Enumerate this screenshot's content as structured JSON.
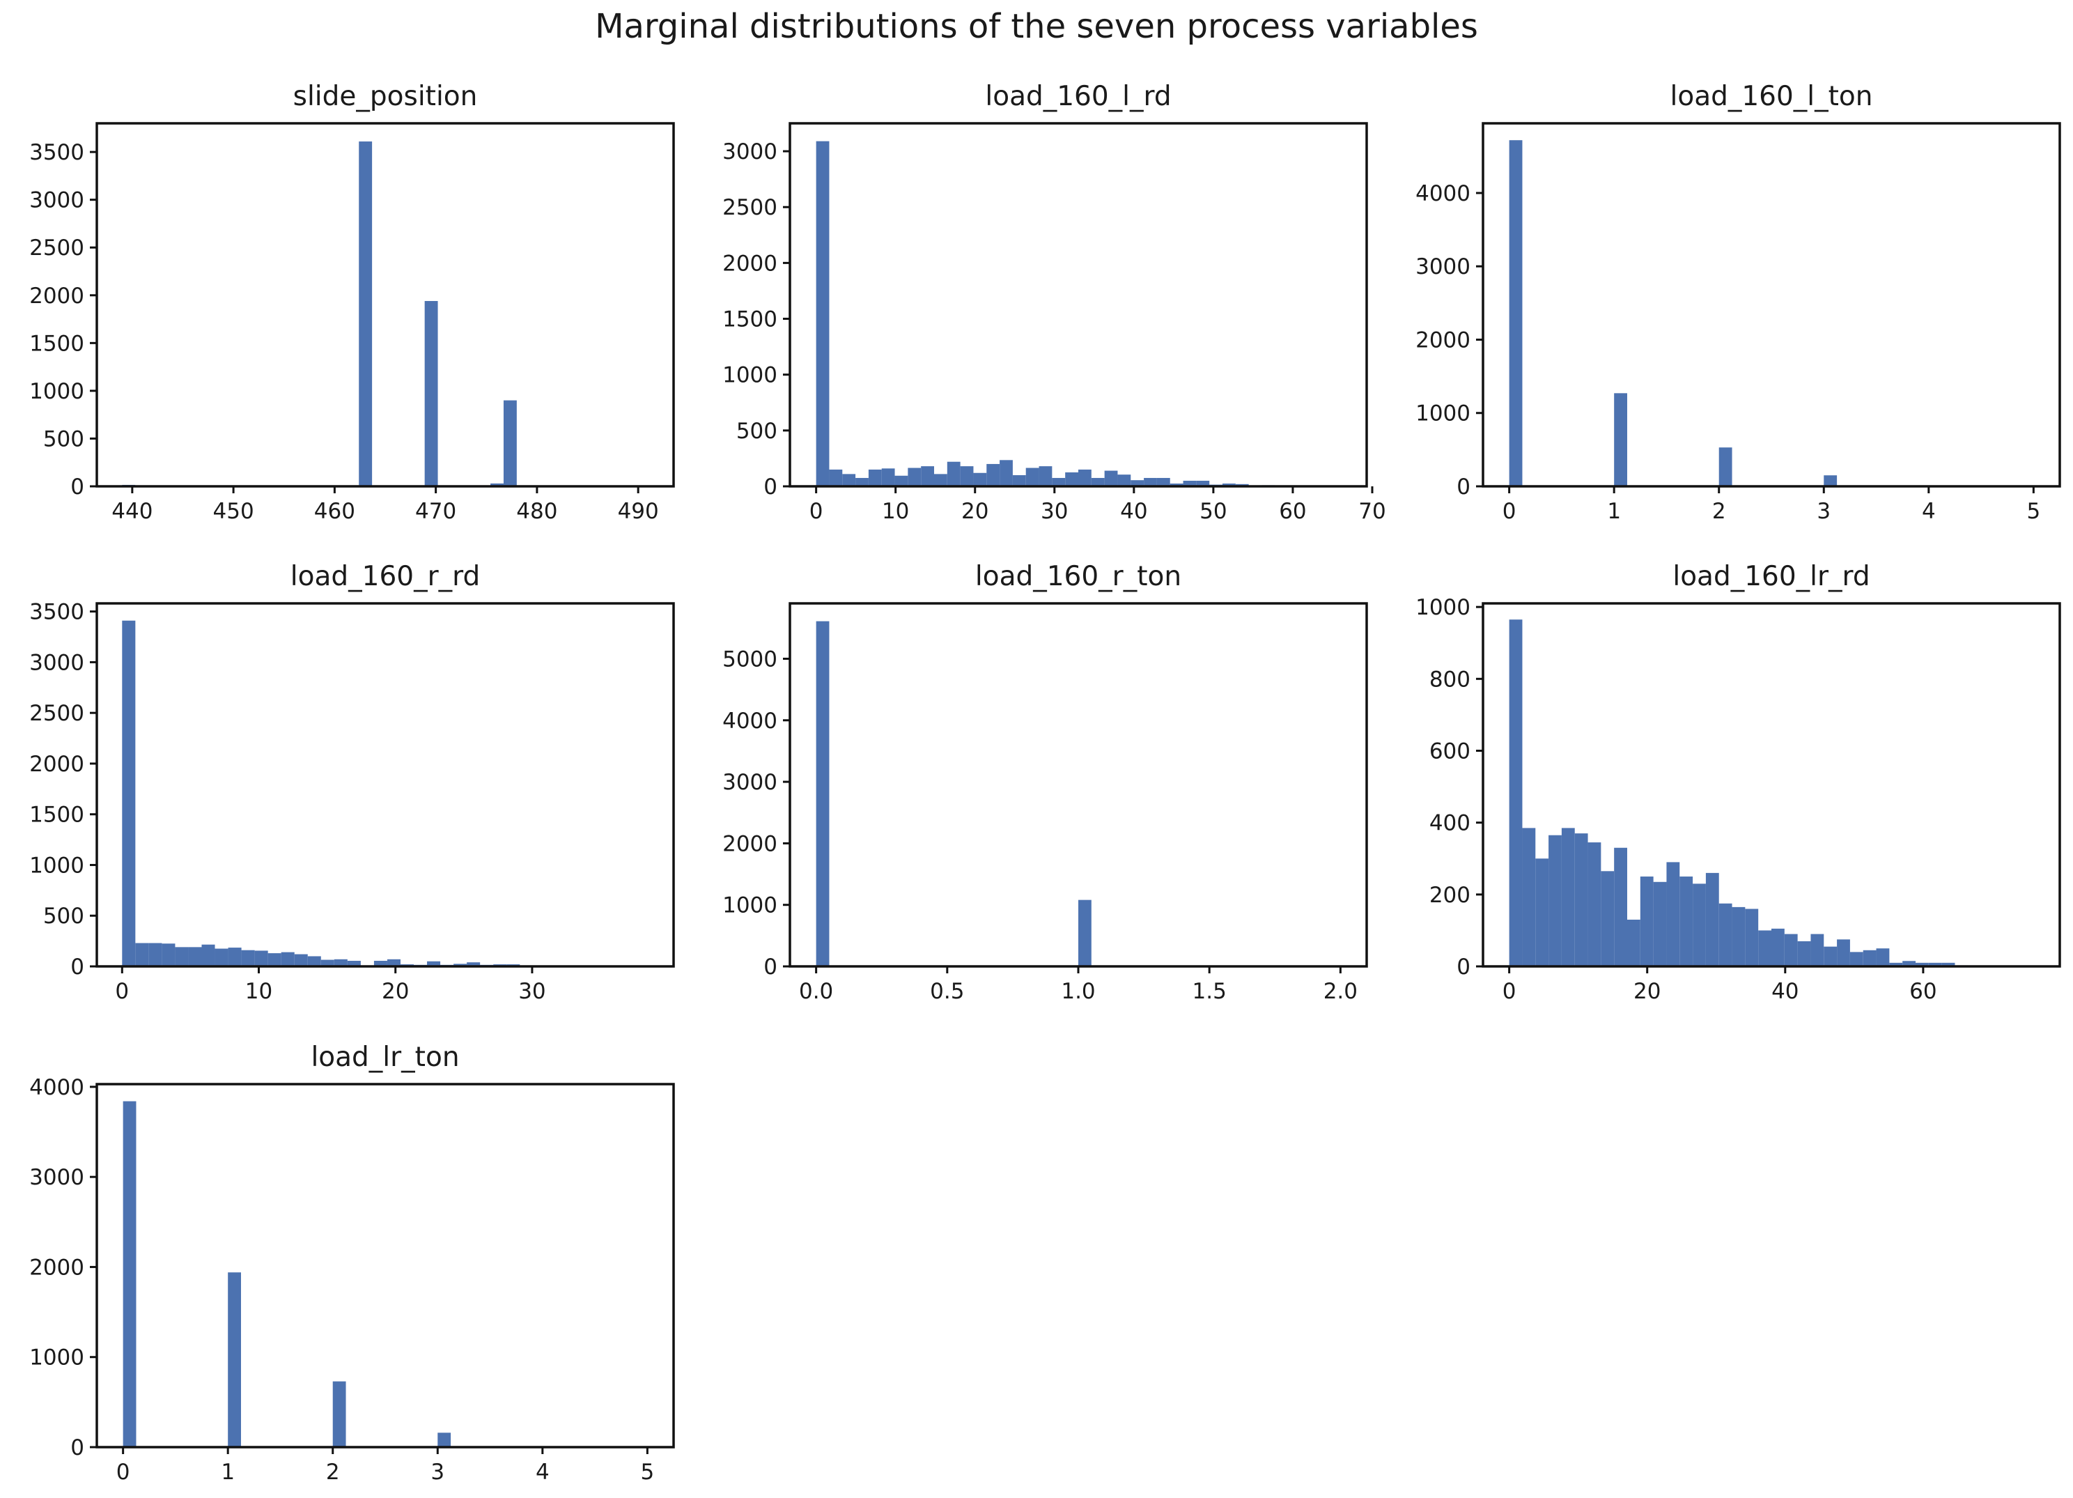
{
  "figure": {
    "title": "Marginal distributions of the seven process variables",
    "bar_color": "#4c72b0"
  },
  "chart_data": [
    {
      "type": "bar",
      "title": "slide_position",
      "xlim": [
        436.5,
        493.5
      ],
      "ylim": [
        0,
        3800
      ],
      "x_ticks": [
        440,
        450,
        460,
        470,
        480,
        490
      ],
      "y_ticks": [
        0,
        500,
        1000,
        1500,
        2000,
        2500,
        3000,
        3500
      ],
      "bins": [
        {
          "x0": 439.0,
          "x1": 440.3,
          "count": 15
        },
        {
          "x0": 444.2,
          "x1": 445.5,
          "count": 3
        },
        {
          "x0": 449.4,
          "x1": 450.7,
          "count": 3
        },
        {
          "x0": 454.6,
          "x1": 455.9,
          "count": 2
        },
        {
          "x0": 458.5,
          "x1": 459.8,
          "count": 2
        },
        {
          "x0": 462.4,
          "x1": 463.7,
          "count": 3610
        },
        {
          "x0": 468.9,
          "x1": 470.2,
          "count": 1940
        },
        {
          "x0": 475.4,
          "x1": 476.7,
          "count": 30
        },
        {
          "x0": 476.7,
          "x1": 478.0,
          "count": 900
        }
      ]
    },
    {
      "type": "bar",
      "title": "load_160_l_rd",
      "xlim": [
        -3.3,
        69.3
      ],
      "ylim": [
        0,
        3250
      ],
      "x_ticks": [
        0,
        10,
        20,
        30,
        40,
        50,
        60,
        70
      ],
      "y_ticks": [
        0,
        500,
        1000,
        1500,
        2000,
        2500,
        3000
      ],
      "bins": [
        {
          "x0": 0.0,
          "x1": 1.65,
          "count": 3090
        },
        {
          "x0": 1.65,
          "x1": 3.3,
          "count": 150
        },
        {
          "x0": 3.3,
          "x1": 4.95,
          "count": 110
        },
        {
          "x0": 4.95,
          "x1": 6.6,
          "count": 75
        },
        {
          "x0": 6.6,
          "x1": 8.25,
          "count": 150
        },
        {
          "x0": 8.25,
          "x1": 9.9,
          "count": 160
        },
        {
          "x0": 9.9,
          "x1": 11.55,
          "count": 95
        },
        {
          "x0": 11.55,
          "x1": 13.2,
          "count": 165
        },
        {
          "x0": 13.2,
          "x1": 14.85,
          "count": 180
        },
        {
          "x0": 14.85,
          "x1": 16.5,
          "count": 110
        },
        {
          "x0": 16.5,
          "x1": 18.15,
          "count": 220
        },
        {
          "x0": 18.15,
          "x1": 19.8,
          "count": 180
        },
        {
          "x0": 19.8,
          "x1": 21.45,
          "count": 120
        },
        {
          "x0": 21.45,
          "x1": 23.1,
          "count": 200
        },
        {
          "x0": 23.1,
          "x1": 24.75,
          "count": 235
        },
        {
          "x0": 24.75,
          "x1": 26.4,
          "count": 100
        },
        {
          "x0": 26.4,
          "x1": 28.05,
          "count": 165
        },
        {
          "x0": 28.05,
          "x1": 29.7,
          "count": 180
        },
        {
          "x0": 29.7,
          "x1": 31.35,
          "count": 75
        },
        {
          "x0": 31.35,
          "x1": 33.0,
          "count": 125
        },
        {
          "x0": 33.0,
          "x1": 34.65,
          "count": 150
        },
        {
          "x0": 34.65,
          "x1": 36.3,
          "count": 75
        },
        {
          "x0": 36.3,
          "x1": 37.95,
          "count": 140
        },
        {
          "x0": 37.95,
          "x1": 39.6,
          "count": 105
        },
        {
          "x0": 39.6,
          "x1": 41.25,
          "count": 55
        },
        {
          "x0": 41.25,
          "x1": 42.9,
          "count": 75
        },
        {
          "x0": 42.9,
          "x1": 44.55,
          "count": 75
        },
        {
          "x0": 44.55,
          "x1": 46.2,
          "count": 25
        },
        {
          "x0": 46.2,
          "x1": 47.85,
          "count": 50
        },
        {
          "x0": 47.85,
          "x1": 49.5,
          "count": 50
        },
        {
          "x0": 49.5,
          "x1": 51.15,
          "count": 15
        },
        {
          "x0": 51.15,
          "x1": 52.8,
          "count": 25
        },
        {
          "x0": 52.8,
          "x1": 54.45,
          "count": 20
        },
        {
          "x0": 54.45,
          "x1": 56.1,
          "count": 8
        },
        {
          "x0": 56.1,
          "x1": 57.75,
          "count": 10
        },
        {
          "x0": 57.75,
          "x1": 59.4,
          "count": 5
        },
        {
          "x0": 59.4,
          "x1": 61.05,
          "count": 8
        },
        {
          "x0": 61.05,
          "x1": 62.7,
          "count": 5
        },
        {
          "x0": 62.7,
          "x1": 64.35,
          "count": 3
        },
        {
          "x0": 64.35,
          "x1": 66.0,
          "count": 3
        }
      ]
    },
    {
      "type": "bar",
      "title": "load_160_l_ton",
      "xlim": [
        -0.25,
        5.25
      ],
      "ylim": [
        0,
        4950
      ],
      "x_ticks": [
        0,
        1,
        2,
        3,
        4,
        5
      ],
      "y_ticks": [
        0,
        1000,
        2000,
        3000,
        4000
      ],
      "bins": [
        {
          "x0": 0.0,
          "x1": 0.125,
          "count": 4720
        },
        {
          "x0": 1.0,
          "x1": 1.125,
          "count": 1270
        },
        {
          "x0": 2.0,
          "x1": 2.125,
          "count": 530
        },
        {
          "x0": 3.0,
          "x1": 3.125,
          "count": 150
        },
        {
          "x0": 4.0,
          "x1": 4.125,
          "count": 10
        },
        {
          "x0": 4.875,
          "x1": 5.0,
          "count": 2
        }
      ]
    },
    {
      "type": "bar",
      "title": "load_160_r_rd",
      "xlim": [
        -1.85,
        40.35
      ],
      "ylim": [
        0,
        3580
      ],
      "x_ticks": [
        0,
        10,
        20,
        30
      ],
      "y_ticks": [
        0,
        500,
        1000,
        1500,
        2000,
        2500,
        3000,
        3500
      ],
      "bins": [
        {
          "x0": 0.0,
          "x1": 0.97,
          "count": 3410
        },
        {
          "x0": 0.97,
          "x1": 1.94,
          "count": 230
        },
        {
          "x0": 1.94,
          "x1": 2.91,
          "count": 230
        },
        {
          "x0": 2.91,
          "x1": 3.88,
          "count": 225
        },
        {
          "x0": 3.88,
          "x1": 4.85,
          "count": 190
        },
        {
          "x0": 4.85,
          "x1": 5.82,
          "count": 190
        },
        {
          "x0": 5.82,
          "x1": 6.79,
          "count": 215
        },
        {
          "x0": 6.79,
          "x1": 7.76,
          "count": 175
        },
        {
          "x0": 7.76,
          "x1": 8.73,
          "count": 185
        },
        {
          "x0": 8.73,
          "x1": 9.7,
          "count": 160
        },
        {
          "x0": 9.7,
          "x1": 10.67,
          "count": 155
        },
        {
          "x0": 10.67,
          "x1": 11.64,
          "count": 130
        },
        {
          "x0": 11.64,
          "x1": 12.61,
          "count": 140
        },
        {
          "x0": 12.61,
          "x1": 13.58,
          "count": 120
        },
        {
          "x0": 13.58,
          "x1": 14.55,
          "count": 100
        },
        {
          "x0": 14.55,
          "x1": 15.52,
          "count": 65
        },
        {
          "x0": 15.52,
          "x1": 16.49,
          "count": 70
        },
        {
          "x0": 16.49,
          "x1": 17.46,
          "count": 55
        },
        {
          "x0": 17.46,
          "x1": 18.43,
          "count": 10
        },
        {
          "x0": 18.43,
          "x1": 19.4,
          "count": 55
        },
        {
          "x0": 19.4,
          "x1": 20.37,
          "count": 70
        },
        {
          "x0": 20.37,
          "x1": 21.34,
          "count": 20
        },
        {
          "x0": 21.34,
          "x1": 22.31,
          "count": 15
        },
        {
          "x0": 22.31,
          "x1": 23.28,
          "count": 50
        },
        {
          "x0": 23.28,
          "x1": 24.25,
          "count": 15
        },
        {
          "x0": 24.25,
          "x1": 25.22,
          "count": 25
        },
        {
          "x0": 25.22,
          "x1": 26.19,
          "count": 40
        },
        {
          "x0": 26.19,
          "x1": 27.16,
          "count": 15
        },
        {
          "x0": 27.16,
          "x1": 28.13,
          "count": 20
        },
        {
          "x0": 28.13,
          "x1": 29.1,
          "count": 20
        },
        {
          "x0": 29.1,
          "x1": 30.07,
          "count": 5
        },
        {
          "x0": 30.07,
          "x1": 31.04,
          "count": 5
        },
        {
          "x0": 31.04,
          "x1": 32.01,
          "count": 3
        },
        {
          "x0": 32.01,
          "x1": 32.98,
          "count": 3
        },
        {
          "x0": 32.98,
          "x1": 33.95,
          "count": 2
        },
        {
          "x0": 33.95,
          "x1": 34.92,
          "count": 2
        }
      ]
    },
    {
      "type": "bar",
      "title": "load_160_r_ton",
      "xlim": [
        -0.1,
        2.1
      ],
      "ylim": [
        0,
        5900
      ],
      "x_ticks": [
        "0.0",
        "0.5",
        "1.0",
        "1.5",
        "2.0"
      ],
      "y_ticks": [
        0,
        1000,
        2000,
        3000,
        4000,
        5000
      ],
      "bins": [
        {
          "x0": 0.0,
          "x1": 0.05,
          "count": 5610
        },
        {
          "x0": 1.0,
          "x1": 1.05,
          "count": 1080
        },
        {
          "x0": 1.95,
          "x1": 2.0,
          "count": 5
        }
      ]
    },
    {
      "type": "bar",
      "title": "load_160_lr_rd",
      "xlim": [
        -3.8,
        79.8
      ],
      "ylim": [
        0,
        1010
      ],
      "x_ticks": [
        0,
        20,
        40,
        60
      ],
      "y_ticks": [
        0,
        200,
        400,
        600,
        800,
        1000
      ],
      "bins": [
        {
          "x0": 0.0,
          "x1": 1.9,
          "count": 965
        },
        {
          "x0": 1.9,
          "x1": 3.8,
          "count": 385
        },
        {
          "x0": 3.8,
          "x1": 5.7,
          "count": 300
        },
        {
          "x0": 5.7,
          "x1": 7.6,
          "count": 365
        },
        {
          "x0": 7.6,
          "x1": 9.5,
          "count": 385
        },
        {
          "x0": 9.5,
          "x1": 11.4,
          "count": 370
        },
        {
          "x0": 11.4,
          "x1": 13.3,
          "count": 345
        },
        {
          "x0": 13.3,
          "x1": 15.2,
          "count": 265
        },
        {
          "x0": 15.2,
          "x1": 17.1,
          "count": 330
        },
        {
          "x0": 17.1,
          "x1": 19.0,
          "count": 130
        },
        {
          "x0": 19.0,
          "x1": 20.9,
          "count": 250
        },
        {
          "x0": 20.9,
          "x1": 22.8,
          "count": 235
        },
        {
          "x0": 22.8,
          "x1": 24.7,
          "count": 290
        },
        {
          "x0": 24.7,
          "x1": 26.6,
          "count": 250
        },
        {
          "x0": 26.6,
          "x1": 28.5,
          "count": 230
        },
        {
          "x0": 28.5,
          "x1": 30.4,
          "count": 260
        },
        {
          "x0": 30.4,
          "x1": 32.3,
          "count": 175
        },
        {
          "x0": 32.3,
          "x1": 34.2,
          "count": 165
        },
        {
          "x0": 34.2,
          "x1": 36.1,
          "count": 160
        },
        {
          "x0": 36.1,
          "x1": 38.0,
          "count": 100
        },
        {
          "x0": 38.0,
          "x1": 39.9,
          "count": 105
        },
        {
          "x0": 39.9,
          "x1": 41.8,
          "count": 90
        },
        {
          "x0": 41.8,
          "x1": 43.7,
          "count": 70
        },
        {
          "x0": 43.7,
          "x1": 45.6,
          "count": 90
        },
        {
          "x0": 45.6,
          "x1": 47.5,
          "count": 55
        },
        {
          "x0": 47.5,
          "x1": 49.4,
          "count": 75
        },
        {
          "x0": 49.4,
          "x1": 51.3,
          "count": 40
        },
        {
          "x0": 51.3,
          "x1": 53.2,
          "count": 45
        },
        {
          "x0": 53.2,
          "x1": 55.1,
          "count": 50
        },
        {
          "x0": 55.1,
          "x1": 57.0,
          "count": 10
        },
        {
          "x0": 57.0,
          "x1": 58.9,
          "count": 15
        },
        {
          "x0": 58.9,
          "x1": 60.8,
          "count": 10
        },
        {
          "x0": 60.8,
          "x1": 62.7,
          "count": 10
        },
        {
          "x0": 62.7,
          "x1": 64.6,
          "count": 10
        },
        {
          "x0": 64.6,
          "x1": 66.5,
          "count": 3
        },
        {
          "x0": 66.5,
          "x1": 68.4,
          "count": 2
        },
        {
          "x0": 68.4,
          "x1": 70.3,
          "count": 1
        },
        {
          "x0": 70.3,
          "x1": 72.2,
          "count": 1
        },
        {
          "x0": 72.2,
          "x1": 74.1,
          "count": 1
        },
        {
          "x0": 74.1,
          "x1": 76.0,
          "count": 1
        }
      ]
    },
    {
      "type": "bar",
      "title": "load_lr_ton",
      "xlim": [
        -0.25,
        5.25
      ],
      "ylim": [
        0,
        4030
      ],
      "x_ticks": [
        0,
        1,
        2,
        3,
        4,
        5
      ],
      "y_ticks": [
        0,
        1000,
        2000,
        3000,
        4000
      ],
      "bins": [
        {
          "x0": 0.0,
          "x1": 0.125,
          "count": 3840
        },
        {
          "x0": 1.0,
          "x1": 1.125,
          "count": 1940
        },
        {
          "x0": 2.0,
          "x1": 2.125,
          "count": 730
        },
        {
          "x0": 3.0,
          "x1": 3.125,
          "count": 160
        },
        {
          "x0": 4.0,
          "x1": 4.125,
          "count": 10
        },
        {
          "x0": 4.875,
          "x1": 5.0,
          "count": 2
        }
      ]
    }
  ]
}
